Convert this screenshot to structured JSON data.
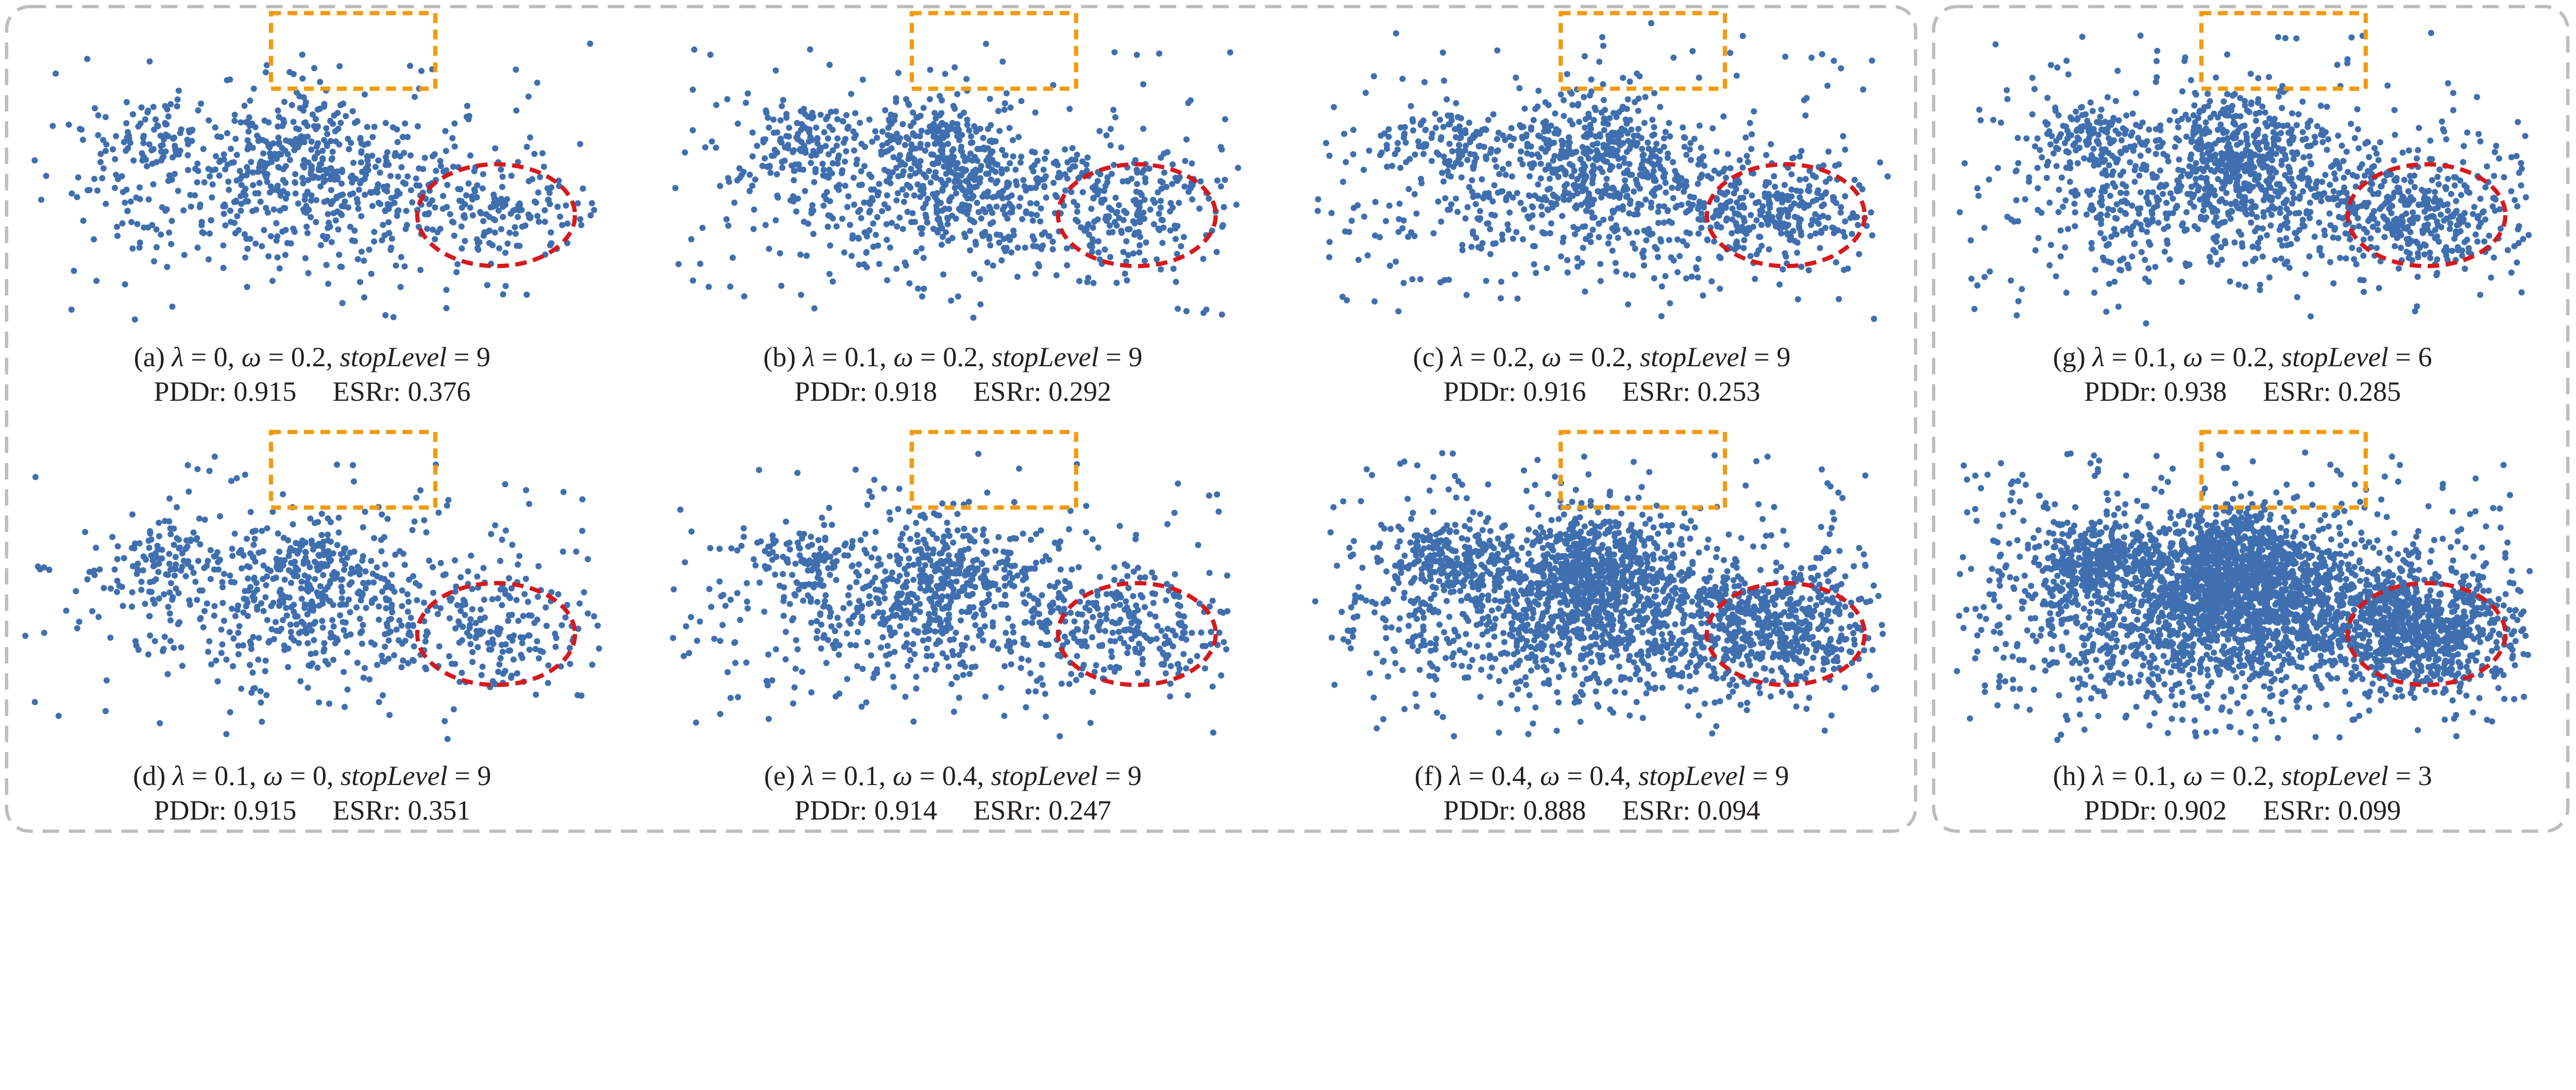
{
  "labels": {
    "lambda": "λ",
    "omega": "ω",
    "stop": "stopLevel",
    "pddr": "PDDr:",
    "esrr": "ESRr:"
  },
  "colors": {
    "points": "#3f6faf",
    "highlight_rect": "#f29b0f",
    "highlight_ellipse": "#d7191c",
    "group_border": "#bdbdbd"
  },
  "chart_data": [
    {
      "type": "scatter",
      "label": "(a)",
      "lambda": "0",
      "omega": "0.2",
      "stopLevel": "9",
      "PDDr": "0.915",
      "ESRr": "0.376",
      "group": "left"
    },
    {
      "type": "scatter",
      "label": "(b)",
      "lambda": "0.1",
      "omega": "0.2",
      "stopLevel": "9",
      "PDDr": "0.918",
      "ESRr": "0.292",
      "group": "left"
    },
    {
      "type": "scatter",
      "label": "(c)",
      "lambda": "0.2",
      "omega": "0.2",
      "stopLevel": "9",
      "PDDr": "0.916",
      "ESRr": "0.253",
      "group": "left"
    },
    {
      "type": "scatter",
      "label": "(g)",
      "lambda": "0.1",
      "omega": "0.2",
      "stopLevel": "6",
      "PDDr": "0.938",
      "ESRr": "0.285",
      "group": "right"
    },
    {
      "type": "scatter",
      "label": "(d)",
      "lambda": "0.1",
      "omega": "0",
      "stopLevel": "9",
      "PDDr": "0.915",
      "ESRr": "0.351",
      "group": "left"
    },
    {
      "type": "scatter",
      "label": "(e)",
      "lambda": "0.1",
      "omega": "0.4",
      "stopLevel": "9",
      "PDDr": "0.914",
      "ESRr": "0.247",
      "group": "left"
    },
    {
      "type": "scatter",
      "label": "(f)",
      "lambda": "0.4",
      "omega": "0.4",
      "stopLevel": "9",
      "PDDr": "0.888",
      "ESRr": "0.094",
      "group": "left"
    },
    {
      "type": "scatter",
      "label": "(h)",
      "lambda": "0.1",
      "omega": "0.2",
      "stopLevel": "3",
      "PDDr": "0.902",
      "ESRr": "0.099",
      "group": "right"
    }
  ]
}
